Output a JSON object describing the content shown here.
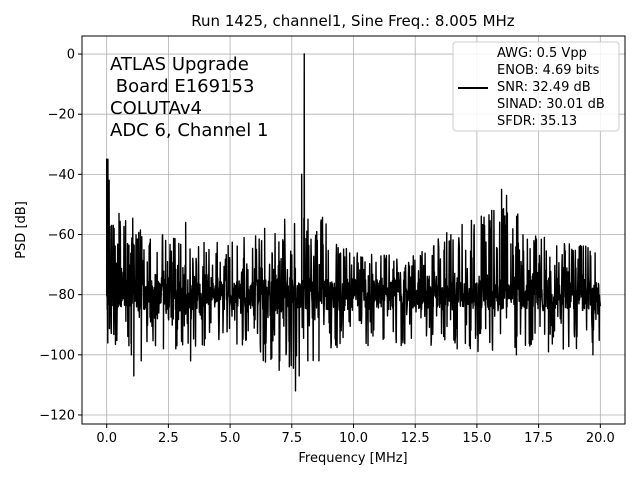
{
  "chart_data": {
    "type": "line",
    "title": "Run 1425, channel1, Sine Freq.: 8.005 MHz",
    "xlabel": "Frequency [MHz]",
    "ylabel": "PSD [dB]",
    "xlim": [
      -1.0,
      21.0
    ],
    "ylim": [
      -123,
      6
    ],
    "xticks": [
      0.0,
      2.5,
      5.0,
      7.5,
      10.0,
      12.5,
      15.0,
      17.5,
      20.0
    ],
    "xtick_labels": [
      "0.0",
      "2.5",
      "5.0",
      "7.5",
      "10.0",
      "12.5",
      "15.0",
      "17.5",
      "20.0"
    ],
    "yticks": [
      0,
      -20,
      -40,
      -60,
      -80,
      -100,
      -120
    ],
    "ytick_labels": [
      "0",
      "−20",
      "−40",
      "−60",
      "−80",
      "−100",
      "−120"
    ],
    "grid": true,
    "annotation": [
      "ATLAS Upgrade",
      " Board E169153",
      "COLUTAv4",
      "ADC 6, Channel 1"
    ],
    "legend": {
      "placement": "top-right",
      "line_color": "#000000",
      "entries": [
        "AWG: 0.5 Vpp",
        "ENOB: 4.69 bits",
        "SNR: 32.49 dB",
        "SINAD: 30.01 dB",
        "SFDR: 35.13"
      ]
    },
    "series": [
      {
        "name": "PSD",
        "color": "#000000",
        "noise_floor_db": -80,
        "signal_peak": {
          "x": 8.005,
          "y": 0
        },
        "dc_peak": {
          "x": 0.0,
          "y": -35
        },
        "envelope": [
          {
            "x": 0.0,
            "max": -54,
            "min": -97
          },
          {
            "x": 1.0,
            "max": -54,
            "min": -100
          },
          {
            "x": 2.5,
            "max": -61,
            "min": -97
          },
          {
            "x": 5.0,
            "max": -62,
            "min": -98
          },
          {
            "x": 7.5,
            "max": -52,
            "min": -108
          },
          {
            "x": 8.5,
            "max": -52,
            "min": -102
          },
          {
            "x": 10.0,
            "max": -66,
            "min": -98
          },
          {
            "x": 12.5,
            "max": -67,
            "min": -97
          },
          {
            "x": 14.0,
            "max": -58,
            "min": -97
          },
          {
            "x": 15.5,
            "max": -50,
            "min": -100
          },
          {
            "x": 16.0,
            "max": -45,
            "min": -100
          },
          {
            "x": 17.5,
            "max": -60,
            "min": -97
          },
          {
            "x": 20.0,
            "max": -62,
            "min": -100
          }
        ],
        "spikes": [
          {
            "x": 0.05,
            "y": -35
          },
          {
            "x": 0.1,
            "y": -42
          },
          {
            "x": 0.3,
            "y": -58
          },
          {
            "x": 0.5,
            "y": -53
          },
          {
            "x": 0.9,
            "y": -97
          },
          {
            "x": 1.0,
            "y": -100
          },
          {
            "x": 1.1,
            "y": -107
          },
          {
            "x": 1.4,
            "y": -102
          },
          {
            "x": 2.3,
            "y": -98
          },
          {
            "x": 2.8,
            "y": -98
          },
          {
            "x": 3.2,
            "y": -56
          },
          {
            "x": 3.4,
            "y": -102
          },
          {
            "x": 6.4,
            "y": -58
          },
          {
            "x": 7.4,
            "y": -104
          },
          {
            "x": 7.65,
            "y": -112
          },
          {
            "x": 7.8,
            "y": -107
          },
          {
            "x": 7.9,
            "y": -40
          },
          {
            "x": 8.15,
            "y": -102
          },
          {
            "x": 8.6,
            "y": -102
          },
          {
            "x": 9.5,
            "y": -92
          },
          {
            "x": 12.0,
            "y": -96
          },
          {
            "x": 13.7,
            "y": -95
          },
          {
            "x": 14.2,
            "y": -98
          },
          {
            "x": 15.6,
            "y": -52
          },
          {
            "x": 16.0,
            "y": -45
          },
          {
            "x": 16.2,
            "y": -47
          },
          {
            "x": 16.6,
            "y": -100
          },
          {
            "x": 17.9,
            "y": -99
          },
          {
            "x": 19.7,
            "y": -100
          }
        ]
      }
    ]
  }
}
